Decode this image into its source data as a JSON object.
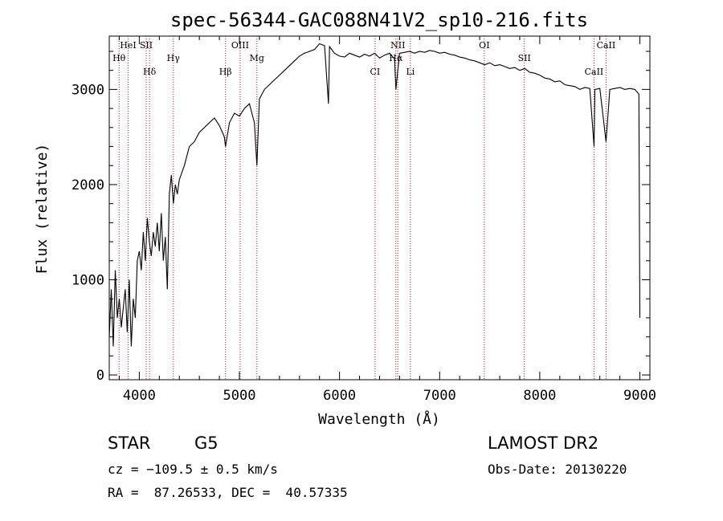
{
  "chart_data": {
    "type": "line",
    "title": "spec-56344-GAC088N41V2_sp10-216.fits",
    "xlabel": "Wavelength (Å)",
    "ylabel": "Flux (relative)",
    "xlim": [
      3700,
      9100
    ],
    "ylim": [
      -50,
      3560
    ],
    "xticks": [
      4000,
      5000,
      6000,
      7000,
      8000,
      9000
    ],
    "xtick_labels": [
      "4000",
      "5000",
      "6000",
      "7000",
      "8000",
      "9000"
    ],
    "yticks": [
      0,
      1000,
      2000,
      3000
    ],
    "ytick_labels": [
      "0",
      "1000",
      "2000",
      "3000"
    ],
    "grid": false,
    "series": [
      {
        "x": [
          3700,
          3720,
          3740,
          3760,
          3780,
          3800,
          3820,
          3840,
          3860,
          3880,
          3900,
          3920,
          3940,
          3960,
          3980,
          4000,
          4020,
          4040,
          4060,
          4080,
          4100,
          4120,
          4140,
          4160,
          4180,
          4200,
          4220,
          4240,
          4260,
          4280,
          4300,
          4320,
          4340,
          4360,
          4380,
          4400,
          4450,
          4500,
          4550,
          4600,
          4650,
          4700,
          4750,
          4800,
          4850,
          4861,
          4900,
          4950,
          5000,
          5050,
          5100,
          5150,
          5175,
          5200,
          5250,
          5300,
          5350,
          5400,
          5450,
          5500,
          5550,
          5600,
          5650,
          5700,
          5750,
          5800,
          5850,
          5890,
          5900,
          5950,
          6000,
          6050,
          6100,
          6150,
          6200,
          6250,
          6300,
          6350,
          6400,
          6450,
          6500,
          6550,
          6563,
          6600,
          6650,
          6700,
          6750,
          6800,
          6850,
          6900,
          6950,
          7000,
          7050,
          7100,
          7150,
          7200,
          7250,
          7300,
          7350,
          7400,
          7450,
          7500,
          7550,
          7600,
          7650,
          7700,
          7750,
          7800,
          7850,
          7900,
          7950,
          8000,
          8050,
          8100,
          8150,
          8200,
          8250,
          8300,
          8350,
          8400,
          8450,
          8500,
          8542,
          8550,
          8600,
          8662,
          8700,
          8750,
          8800,
          8850,
          8900,
          8950,
          8990,
          9000
        ],
        "y": [
          400,
          900,
          300,
          1100,
          600,
          800,
          500,
          700,
          900,
          450,
          1000,
          300,
          800,
          600,
          1200,
          1300,
          1100,
          1500,
          1200,
          1650,
          1400,
          1250,
          1500,
          1350,
          1600,
          1300,
          1700,
          1200,
          1450,
          900,
          1900,
          2100,
          1800,
          2000,
          1900,
          2050,
          2200,
          2400,
          2450,
          2550,
          2600,
          2650,
          2700,
          2620,
          2500,
          2400,
          2650,
          2750,
          2720,
          2800,
          2850,
          2650,
          2200,
          2900,
          3000,
          3050,
          3100,
          3150,
          3200,
          3250,
          3300,
          3350,
          3380,
          3400,
          3420,
          3480,
          3460,
          2850,
          3450,
          3380,
          3350,
          3340,
          3380,
          3360,
          3340,
          3370,
          3350,
          3380,
          3330,
          3360,
          3380,
          3320,
          3000,
          3380,
          3390,
          3400,
          3380,
          3400,
          3390,
          3410,
          3400,
          3380,
          3390,
          3370,
          3360,
          3340,
          3330,
          3310,
          3300,
          3280,
          3260,
          3280,
          3250,
          3260,
          3240,
          3220,
          3230,
          3200,
          3220,
          3180,
          3170,
          3150,
          3120,
          3110,
          3080,
          3090,
          3050,
          3040,
          3030,
          3000,
          3020,
          3010,
          2400,
          3000,
          3010,
          2450,
          3000,
          3010,
          3020,
          3000,
          3010,
          3000,
          2950,
          600
        ]
      }
    ],
    "line_labels": [
      {
        "text": "HeI",
        "x": 3889
      },
      {
        "text": "Hθ",
        "x": 3798
      },
      {
        "text": "Hδ",
        "x": 4102
      },
      {
        "text": "SII",
        "x": 4069
      },
      {
        "text": "Hγ",
        "x": 4340
      },
      {
        "text": "Hβ",
        "x": 4861
      },
      {
        "text": "OIII",
        "x": 5007
      },
      {
        "text": "Mg",
        "x": 5175
      },
      {
        "text": "CI",
        "x": 6355
      },
      {
        "text": "NII",
        "x": 6583
      },
      {
        "text": "Hα",
        "x": 6563
      },
      {
        "text": "Li",
        "x": 6708
      },
      {
        "text": "OI",
        "x": 7446
      },
      {
        "text": "SII",
        "x": 7846
      },
      {
        "text": "CaII",
        "x": 8542
      },
      {
        "text": "CaII",
        "x": 8662
      }
    ]
  },
  "info": {
    "object_class": "STAR",
    "subclass": "G5",
    "survey": "LAMOST DR2",
    "cz": "cz = −109.5 ± 0.5 km/s",
    "obs_date": "Obs-Date: 20130220",
    "coords": "RA =  87.26533, DEC =  40.57335"
  }
}
